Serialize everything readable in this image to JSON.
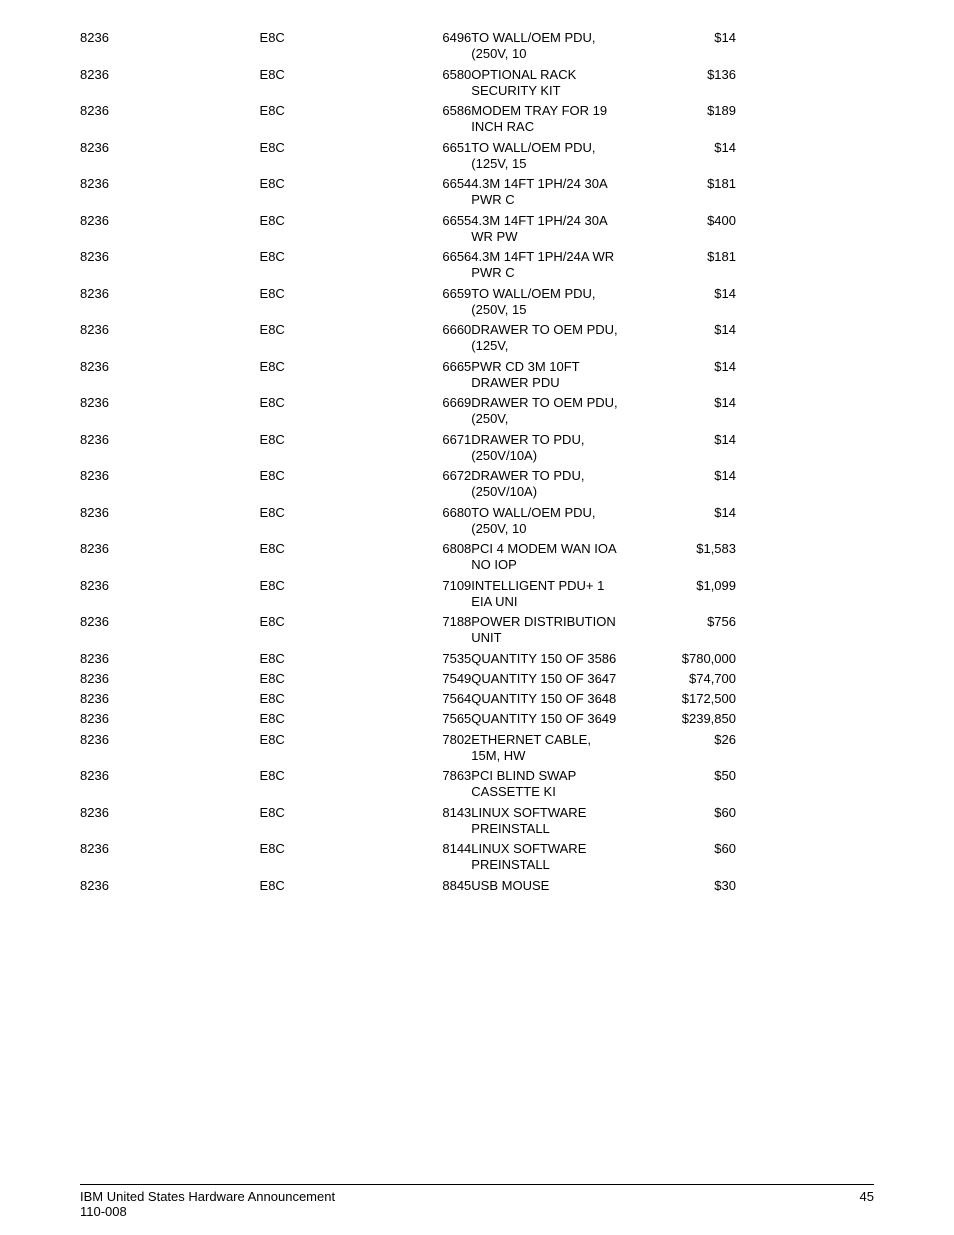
{
  "footer": {
    "title_line1": "IBM United States Hardware Announcement",
    "title_line2": "110-008",
    "page": "45"
  },
  "style": {
    "font_family": "Verdana, Geneva, sans-serif",
    "font_size_pt": 10,
    "text_color": "#000000",
    "background_color": "#ffffff",
    "rule_color": "#000000"
  },
  "table": {
    "columns": [
      "machine_type",
      "model",
      "feature",
      "description",
      "price"
    ],
    "col_align": [
      "left",
      "left",
      "right",
      "left",
      "right"
    ],
    "rows": [
      {
        "a": "8236",
        "b": "E8C",
        "c": "6496",
        "d": "TO WALL/OEM PDU, (250V, 10",
        "e": "$14"
      },
      {
        "a": "8236",
        "b": "E8C",
        "c": "6580",
        "d": "OPTIONAL RACK SECURITY KIT",
        "e": "$136"
      },
      {
        "a": "8236",
        "b": "E8C",
        "c": "6586",
        "d": "MODEM TRAY FOR 19 INCH RAC",
        "e": "$189"
      },
      {
        "a": "8236",
        "b": "E8C",
        "c": "6651",
        "d": "TO WALL/OEM PDU, (125V, 15",
        "e": "$14"
      },
      {
        "a": "8236",
        "b": "E8C",
        "c": "6654",
        "d": "4.3M 14FT 1PH/24 30A PWR C",
        "e": "$181"
      },
      {
        "a": "8236",
        "b": "E8C",
        "c": "6655",
        "d": "4.3M 14FT 1PH/24 30A WR PW",
        "e": "$400"
      },
      {
        "a": "8236",
        "b": "E8C",
        "c": "6656",
        "d": "4.3M 14FT 1PH/24A WR PWR C",
        "e": "$181"
      },
      {
        "a": "8236",
        "b": "E8C",
        "c": "6659",
        "d": "TO WALL/OEM PDU, (250V, 15",
        "e": "$14"
      },
      {
        "a": "8236",
        "b": "E8C",
        "c": "6660",
        "d": "DRAWER TO OEM PDU, (125V,",
        "e": "$14"
      },
      {
        "a": "8236",
        "b": "E8C",
        "c": "6665",
        "d": "PWR CD 3M 10FT DRAWER PDU",
        "e": "$14"
      },
      {
        "a": "8236",
        "b": "E8C",
        "c": "6669",
        "d": "DRAWER TO OEM PDU, (250V,",
        "e": "$14"
      },
      {
        "a": "8236",
        "b": "E8C",
        "c": "6671",
        "d": "DRAWER TO PDU, (250V/10A)",
        "e": "$14"
      },
      {
        "a": "8236",
        "b": "E8C",
        "c": "6672",
        "d": "DRAWER TO PDU, (250V/10A)",
        "e": "$14"
      },
      {
        "a": "8236",
        "b": "E8C",
        "c": "6680",
        "d": "TO WALL/OEM PDU, (250V, 10",
        "e": "$14"
      },
      {
        "a": "8236",
        "b": "E8C",
        "c": "6808",
        "d": "PCI 4 MODEM WAN IOA NO IOP",
        "e": "$1,583"
      },
      {
        "a": "8236",
        "b": "E8C",
        "c": "7109",
        "d": "INTELLIGENT PDU+ 1 EIA UNI",
        "e": "$1,099"
      },
      {
        "a": "8236",
        "b": "E8C",
        "c": "7188",
        "d": "POWER DISTRIBUTION UNIT",
        "e": "$756"
      },
      {
        "a": "8236",
        "b": "E8C",
        "c": "7535",
        "d": "QUANTITY 150 OF 3586",
        "e": "$780,000"
      },
      {
        "a": "8236",
        "b": "E8C",
        "c": "7549",
        "d": "QUANTITY 150 OF 3647",
        "e": "$74,700"
      },
      {
        "a": "8236",
        "b": "E8C",
        "c": "7564",
        "d": "QUANTITY 150 OF 3648",
        "e": "$172,500"
      },
      {
        "a": "8236",
        "b": "E8C",
        "c": "7565",
        "d": "QUANTITY 150 OF 3649",
        "e": "$239,850"
      },
      {
        "a": "8236",
        "b": "E8C",
        "c": "7802",
        "d": "ETHERNET CABLE, 15M, HW",
        "e": "$26"
      },
      {
        "a": "8236",
        "b": "E8C",
        "c": "7863",
        "d": "PCI BLIND SWAP CASSETTE KI",
        "e": "$50"
      },
      {
        "a": "8236",
        "b": "E8C",
        "c": "8143",
        "d": "LINUX SOFTWARE PREINSTALL",
        "e": "$60"
      },
      {
        "a": "8236",
        "b": "E8C",
        "c": "8144",
        "d": "LINUX SOFTWARE PREINSTALL",
        "e": "$60"
      },
      {
        "a": "8236",
        "b": "E8C",
        "c": "8845",
        "d": "USB MOUSE",
        "e": "$30"
      }
    ]
  }
}
